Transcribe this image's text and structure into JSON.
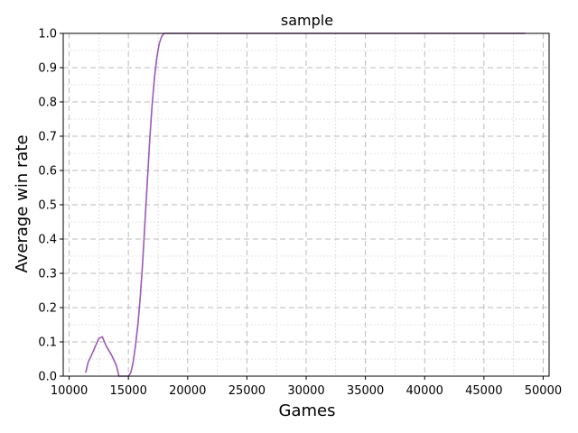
{
  "chart_data": {
    "type": "line",
    "title": "sample",
    "xlabel": "Games",
    "ylabel": "Average win rate",
    "xlim": [
      9500,
      50500
    ],
    "ylim": [
      0.0,
      1.0
    ],
    "x_ticks": [
      10000,
      15000,
      20000,
      25000,
      30000,
      35000,
      40000,
      45000,
      50000
    ],
    "x_tick_labels": [
      "10000",
      "15000",
      "20000",
      "25000",
      "30000",
      "35000",
      "40000",
      "45000",
      "50000"
    ],
    "y_ticks": [
      0.0,
      0.1,
      0.2,
      0.3,
      0.4,
      0.5,
      0.6,
      0.7,
      0.8,
      0.9,
      1.0
    ],
    "y_tick_labels": [
      "0.0",
      "0.1",
      "0.2",
      "0.3",
      "0.4",
      "0.5",
      "0.6",
      "0.7",
      "0.8",
      "0.9",
      "1.0"
    ],
    "grid": true,
    "series": [
      {
        "color": "#9b59b6",
        "x": [
          11400,
          11600,
          12000,
          12500,
          12800,
          13100,
          13600,
          14000,
          14200,
          14600,
          15000,
          15200,
          15400,
          15600,
          15800,
          16000,
          16200,
          16400,
          16600,
          16800,
          17000,
          17200,
          17400,
          17600,
          17800,
          18000,
          18100,
          18150,
          20000,
          25000,
          30000,
          35000,
          40000,
          45000,
          48500
        ],
        "y": [
          0.01,
          0.04,
          0.07,
          0.11,
          0.115,
          0.09,
          0.06,
          0.03,
          0.0,
          0.0,
          0.0,
          0.01,
          0.04,
          0.09,
          0.15,
          0.23,
          0.33,
          0.45,
          0.57,
          0.69,
          0.79,
          0.87,
          0.93,
          0.97,
          0.99,
          1.0,
          1.0,
          1.0,
          1.0,
          1.0,
          1.0,
          1.0,
          1.0,
          1.0,
          1.0
        ]
      }
    ]
  }
}
